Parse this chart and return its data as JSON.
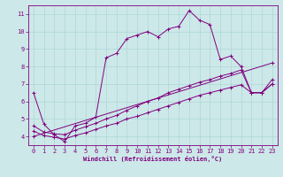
{
  "xlabel": "Windchill (Refroidissement éolien,°C)",
  "bg_color": "#cce8e8",
  "line_color": "#800080",
  "xlim": [
    -0.5,
    23.5
  ],
  "ylim": [
    3.5,
    11.5
  ],
  "yticks": [
    4,
    5,
    6,
    7,
    8,
    9,
    10,
    11
  ],
  "xticks": [
    0,
    1,
    2,
    3,
    4,
    5,
    6,
    7,
    8,
    9,
    10,
    11,
    12,
    13,
    14,
    15,
    16,
    17,
    18,
    19,
    20,
    21,
    22,
    23
  ],
  "lines": [
    {
      "x": [
        0,
        1,
        2,
        3,
        4,
        5,
        6,
        7,
        8,
        9,
        10,
        11,
        12,
        13,
        14,
        15,
        16,
        17,
        18,
        19,
        20,
        21,
        22,
        23
      ],
      "y": [
        6.5,
        4.7,
        4.1,
        3.7,
        4.6,
        4.75,
        5.1,
        8.5,
        8.75,
        9.6,
        9.8,
        10.0,
        9.7,
        10.15,
        10.3,
        11.2,
        10.65,
        10.4,
        8.4,
        8.6,
        8.0,
        6.5,
        6.5,
        7.0
      ],
      "marker": "+"
    },
    {
      "x": [
        0,
        1,
        2,
        3,
        4,
        5,
        6,
        7,
        8,
        9,
        10,
        11,
        12,
        13,
        14,
        15,
        16,
        17,
        18,
        19,
        20,
        21,
        22,
        23
      ],
      "y": [
        4.6,
        4.25,
        4.15,
        4.1,
        4.35,
        4.55,
        4.75,
        5.0,
        5.2,
        5.5,
        5.75,
        6.0,
        6.2,
        6.5,
        6.7,
        6.9,
        7.1,
        7.25,
        7.45,
        7.6,
        7.8,
        6.5,
        6.5,
        7.25
      ],
      "marker": "+"
    },
    {
      "x": [
        0,
        1,
        2,
        3,
        4,
        5,
        6,
        7,
        8,
        9,
        10,
        11,
        12,
        13,
        14,
        15,
        16,
        17,
        18,
        19,
        20,
        21,
        22,
        23
      ],
      "y": [
        4.3,
        4.05,
        3.95,
        3.85,
        4.05,
        4.2,
        4.4,
        4.6,
        4.75,
        5.0,
        5.15,
        5.35,
        5.55,
        5.75,
        5.95,
        6.15,
        6.35,
        6.5,
        6.65,
        6.8,
        6.95,
        6.5,
        6.5,
        7.0
      ],
      "marker": "+"
    },
    {
      "x": [
        0,
        23
      ],
      "y": [
        4.0,
        8.2
      ],
      "marker": "+"
    }
  ]
}
